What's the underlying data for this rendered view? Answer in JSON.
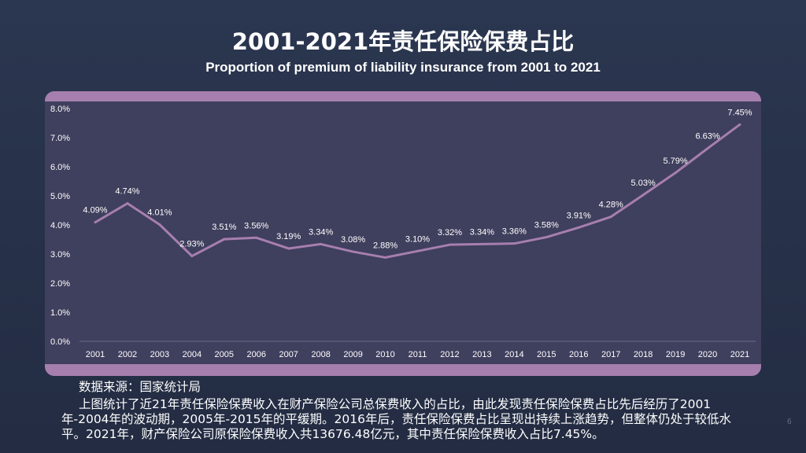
{
  "slide": {
    "title": "2001-2021年责任保险保费占比",
    "subtitle": "Proportion of premium of liability insurance from 2001 to 2021",
    "source": "数据来源：国家统计局",
    "description": "上图统计了近21年责任保险保费收入在财产保险公司总保费收入的占比，由此发现责任保险保费占比先后经历了2001年-2004年的波动期，2005年-2015年的平缓期。2016年后，责任保险保费占比呈现出持续上涨趋势，但整体仍处于较低水平。2021年，财产保险公司原保险保费收入共13676.48亿元，其中责任保险保费收入占比7.45%。",
    "page_number": "6"
  },
  "colors": {
    "line": "#a67fae",
    "panel": "#3f3f5e",
    "accent_bar": "#a67fae",
    "background": "#27314a"
  },
  "chart_data": {
    "type": "line",
    "categories": [
      "2001",
      "2002",
      "2003",
      "2004",
      "2005",
      "2006",
      "2007",
      "2008",
      "2009",
      "2010",
      "2011",
      "2012",
      "2013",
      "2014",
      "2015",
      "2016",
      "2017",
      "2018",
      "2019",
      "2020",
      "2021"
    ],
    "values": [
      4.09,
      4.74,
      4.01,
      2.93,
      3.51,
      3.56,
      3.19,
      3.34,
      3.08,
      2.88,
      3.1,
      3.32,
      3.34,
      3.36,
      3.58,
      3.91,
      4.28,
      5.03,
      5.79,
      6.63,
      7.45
    ],
    "data_labels": [
      "4.09%",
      "4.74%",
      "4.01%",
      "2.93%",
      "3.51%",
      "3.56%",
      "3.19%",
      "3.34%",
      "3.08%",
      "2.88%",
      "3.10%",
      "3.32%",
      "3.34%",
      "3.36%",
      "3.58%",
      "3.91%",
      "4.28%",
      "5.03%",
      "5.79%",
      "6.63%",
      "7.45%"
    ],
    "yticks": [
      "0.0%",
      "1.0%",
      "2.0%",
      "3.0%",
      "4.0%",
      "5.0%",
      "6.0%",
      "7.0%",
      "8.0%"
    ],
    "ylim": [
      0,
      8
    ],
    "unit": "%",
    "grid": false
  }
}
